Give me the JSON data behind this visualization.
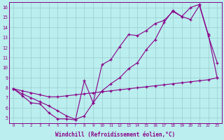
{
  "color": "#880088",
  "bg_color": "#bbeeee",
  "grid_color": "#99cccc",
  "xlabel": "Windchill (Refroidissement éolien,°C)",
  "ylim": [
    4.5,
    16.5
  ],
  "xlim": [
    -0.5,
    23.5
  ],
  "yticks": [
    5,
    6,
    7,
    8,
    9,
    10,
    11,
    12,
    13,
    14,
    15,
    16
  ],
  "xticks": [
    0,
    1,
    2,
    3,
    4,
    5,
    6,
    7,
    8,
    9,
    10,
    11,
    12,
    13,
    14,
    15,
    16,
    17,
    18,
    19,
    20,
    21,
    22,
    23
  ],
  "lineA_x": [
    0,
    1,
    2,
    3,
    4,
    5,
    6,
    7,
    8,
    9,
    10,
    11,
    12,
    13,
    14,
    15,
    16,
    17,
    18,
    19,
    20,
    21,
    22,
    23
  ],
  "lineA_y": [
    7.9,
    7.7,
    7.5,
    7.3,
    7.1,
    7.1,
    7.2,
    7.3,
    7.4,
    7.5,
    7.6,
    7.7,
    7.8,
    7.9,
    8.0,
    8.1,
    8.2,
    8.3,
    8.4,
    8.5,
    8.6,
    8.7,
    8.8,
    9.0
  ],
  "lineB_x": [
    0,
    1,
    2,
    3,
    4,
    5,
    6,
    7,
    8,
    9,
    10,
    11,
    12,
    13,
    14,
    15,
    16,
    17,
    18,
    19,
    20,
    21,
    22,
    23
  ],
  "lineB_y": [
    7.9,
    7.2,
    6.5,
    6.4,
    5.5,
    4.9,
    4.9,
    4.8,
    8.7,
    6.5,
    10.3,
    10.8,
    12.1,
    13.3,
    13.2,
    13.7,
    14.4,
    14.7,
    15.6,
    15.1,
    14.8,
    16.2,
    13.2,
    10.5
  ],
  "lineC_x": [
    0,
    1,
    2,
    3,
    4,
    5,
    6,
    7,
    8,
    9,
    10,
    11,
    12,
    13,
    14,
    15,
    16,
    17,
    18,
    19,
    20,
    21,
    22,
    23
  ],
  "lineC_y": [
    7.9,
    7.4,
    7.0,
    6.6,
    6.2,
    5.7,
    5.2,
    4.85,
    5.2,
    6.5,
    7.7,
    8.4,
    9.0,
    9.9,
    10.5,
    11.8,
    12.8,
    14.5,
    15.7,
    15.1,
    16.0,
    16.3,
    13.3,
    9.0
  ]
}
